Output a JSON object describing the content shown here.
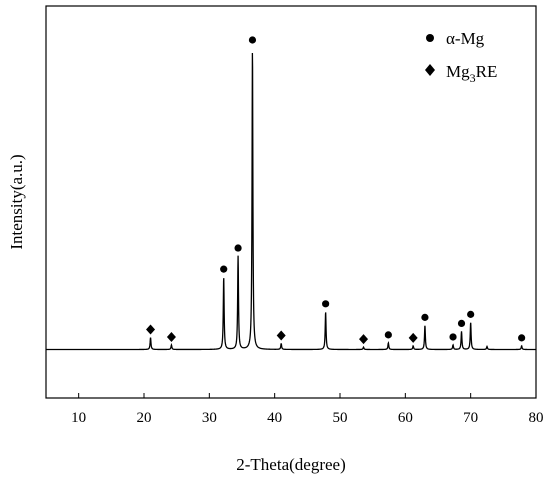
{
  "chart_data": {
    "type": "line",
    "xlabel": "2-Theta(degree)",
    "ylabel": "Intensity(a.u.)",
    "xlim": [
      5,
      80
    ],
    "ylim": [
      -15,
      100
    ],
    "x_ticks": [
      "10",
      "20",
      "30",
      "40",
      "50",
      "60",
      "70",
      "80"
    ],
    "grid": false,
    "legend_position": "top-right",
    "series": [
      {
        "peaks": [
          {
            "x": 21.0,
            "y": 4.0
          },
          {
            "x": 24.2,
            "y": 1.5
          },
          {
            "x": 32.2,
            "y": 24.0
          },
          {
            "x": 34.4,
            "y": 31.0
          },
          {
            "x": 36.6,
            "y": 100.0
          },
          {
            "x": 41.0,
            "y": 2.0
          },
          {
            "x": 47.8,
            "y": 12.5
          },
          {
            "x": 53.6,
            "y": 0.8
          },
          {
            "x": 57.4,
            "y": 2.2
          },
          {
            "x": 61.2,
            "y": 1.2
          },
          {
            "x": 63.0,
            "y": 8.0
          },
          {
            "x": 67.3,
            "y": 1.5
          },
          {
            "x": 68.6,
            "y": 6.0
          },
          {
            "x": 70.0,
            "y": 9.0
          },
          {
            "x": 72.5,
            "y": 1.0
          },
          {
            "x": 77.8,
            "y": 1.2
          }
        ]
      }
    ],
    "legend": [
      {
        "symbol": "circle",
        "label_main": "α-Mg",
        "label_sub": ""
      },
      {
        "symbol": "diamond",
        "label_main": "Mg",
        "label_sub": "3",
        "label_tail": "RE"
      }
    ],
    "markers": [
      {
        "x": 21.0,
        "y": 4.0,
        "phase": "diamond"
      },
      {
        "x": 24.2,
        "y": 1.5,
        "phase": "diamond"
      },
      {
        "x": 32.2,
        "y": 24.0,
        "phase": "circle"
      },
      {
        "x": 34.4,
        "y": 31.0,
        "phase": "circle"
      },
      {
        "x": 36.6,
        "y": 100.0,
        "phase": "circle"
      },
      {
        "x": 41.0,
        "y": 2.0,
        "phase": "diamond"
      },
      {
        "x": 47.8,
        "y": 12.5,
        "phase": "circle"
      },
      {
        "x": 53.6,
        "y": 0.8,
        "phase": "diamond"
      },
      {
        "x": 57.4,
        "y": 2.2,
        "phase": "circle"
      },
      {
        "x": 61.2,
        "y": 1.2,
        "phase": "diamond"
      },
      {
        "x": 63.0,
        "y": 8.0,
        "phase": "circle"
      },
      {
        "x": 67.3,
        "y": 1.5,
        "phase": "circle"
      },
      {
        "x": 68.6,
        "y": 6.0,
        "phase": "circle"
      },
      {
        "x": 70.0,
        "y": 9.0,
        "phase": "circle"
      },
      {
        "x": 77.8,
        "y": 1.2,
        "phase": "circle"
      }
    ],
    "colors": {
      "line": "#000000",
      "marker": "#000000"
    }
  }
}
